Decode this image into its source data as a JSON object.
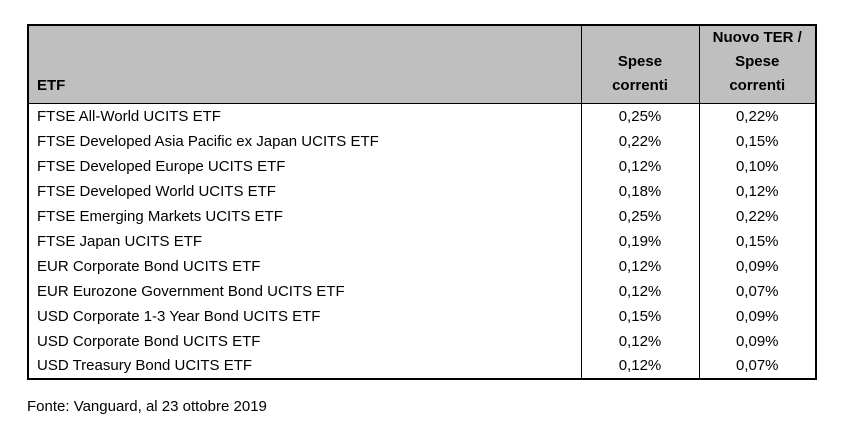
{
  "colors": {
    "header_bg": "#bfbfbf",
    "border": "#000000",
    "text": "#000000",
    "page_bg": "#ffffff"
  },
  "table": {
    "columns": [
      {
        "key": "etf",
        "label": "ETF"
      },
      {
        "key": "spese_correnti",
        "label": "Spese\ncorrenti"
      },
      {
        "key": "nuovo_ter",
        "label": "Nuovo TER /\nSpese\ncorrenti"
      }
    ],
    "rows": [
      {
        "etf": "FTSE All-World UCITS ETF",
        "spese_correnti": "0,25%",
        "nuovo_ter": "0,22%"
      },
      {
        "etf": "FTSE Developed Asia Pacific ex Japan UCITS ETF",
        "spese_correnti": "0,22%",
        "nuovo_ter": "0,15%"
      },
      {
        "etf": "FTSE Developed Europe UCITS ETF",
        "spese_correnti": "0,12%",
        "nuovo_ter": "0,10%"
      },
      {
        "etf": "FTSE Developed World UCITS ETF",
        "spese_correnti": "0,18%",
        "nuovo_ter": "0,12%"
      },
      {
        "etf": "FTSE Emerging Markets UCITS ETF",
        "spese_correnti": "0,25%",
        "nuovo_ter": "0,22%"
      },
      {
        "etf": "FTSE Japan UCITS ETF",
        "spese_correnti": "0,19%",
        "nuovo_ter": "0,15%"
      },
      {
        "etf": "EUR Corporate Bond UCITS ETF",
        "spese_correnti": "0,12%",
        "nuovo_ter": "0,09%"
      },
      {
        "etf": "EUR Eurozone Government Bond UCITS ETF",
        "spese_correnti": "0,12%",
        "nuovo_ter": "0,07%"
      },
      {
        "etf": "USD Corporate 1-3 Year Bond UCITS ETF",
        "spese_correnti": "0,15%",
        "nuovo_ter": "0,09%"
      },
      {
        "etf": "USD Corporate Bond UCITS ETF",
        "spese_correnti": "0,12%",
        "nuovo_ter": "0,09%"
      },
      {
        "etf": "USD Treasury Bond UCITS ETF",
        "spese_correnti": "0,12%",
        "nuovo_ter": "0,07%"
      }
    ]
  },
  "footer": {
    "source": "Fonte: Vanguard, al 23 ottobre 2019"
  }
}
